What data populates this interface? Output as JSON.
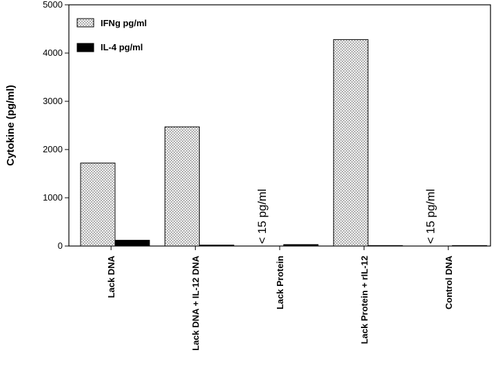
{
  "chart_data": {
    "type": "bar",
    "ylabel": "Cytokine (pg/ml)",
    "xlabel": "",
    "ylim": [
      0,
      5000
    ],
    "yticks": [
      0,
      1000,
      2000,
      3000,
      4000,
      5000
    ],
    "categories": [
      "Lack DNA",
      "Lack DNA + IL-12 DNA",
      "Lack Protein",
      "Lack Protein  + rIL-12",
      "Control DNA"
    ],
    "series": [
      {
        "name": "IFNg pg/ml",
        "fill": "dotted",
        "color": "#e0e0e0",
        "values": [
          1720,
          2470,
          0,
          4280,
          0
        ]
      },
      {
        "name": "IL-4 pg/ml",
        "fill": "solid",
        "color": "#000000",
        "values": [
          120,
          20,
          30,
          10,
          10
        ]
      }
    ],
    "annotations": [
      {
        "category": "Lack Protein",
        "text": "< 15  pg/ml"
      },
      {
        "category": "Control DNA",
        "text": "< 15  pg/ml"
      }
    ],
    "legend_position": "top-left",
    "grid": false
  }
}
